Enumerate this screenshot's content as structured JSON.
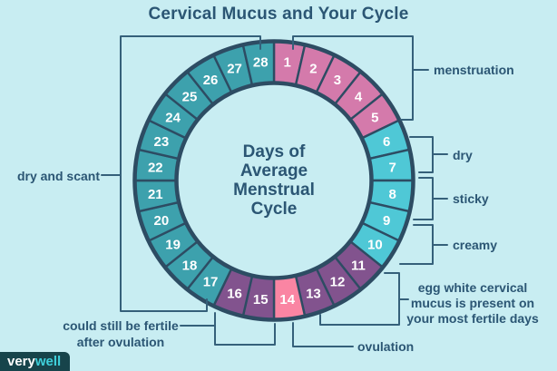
{
  "title": "Cervical Mucus and Your Cycle",
  "center_label": {
    "lines": [
      "Days of",
      "Average",
      "Menstrual",
      "Cycle"
    ]
  },
  "wheel": {
    "day_count": 28,
    "first_day_label": "1",
    "last_day_label": "28",
    "phases": [
      {
        "name": "menstruation",
        "day_start": 1,
        "day_end": 5,
        "color": "#d47aab"
      },
      {
        "name": "dry-sticky-creamy",
        "day_start": 6,
        "day_end": 10,
        "color": "#4fc8d6"
      },
      {
        "name": "fertile-egg-white",
        "day_start": 11,
        "day_end": 13,
        "color": "#82538e"
      },
      {
        "name": "ovulation",
        "day_start": 14,
        "day_end": 14,
        "color": "#fa85a3"
      },
      {
        "name": "fertile-after-ovulation",
        "day_start": 15,
        "day_end": 16,
        "color": "#82538e"
      },
      {
        "name": "luteal-dry-and-scant",
        "day_start": 17,
        "day_end": 28,
        "color": "#3da1ad"
      }
    ]
  },
  "labels": {
    "menstruation": {
      "text": "menstruation",
      "days": "1-5"
    },
    "dry": {
      "text": "dry",
      "days": "6-7"
    },
    "sticky": {
      "text": "sticky",
      "days": "8"
    },
    "creamy": {
      "text": "creamy",
      "days": "9-10"
    },
    "egg_white": {
      "lines": [
        "egg white cervical",
        "mucus is present on",
        "your most fertile days"
      ],
      "days": "11-13"
    },
    "ovulation": {
      "text": "ovulation",
      "days": "14"
    },
    "could_still": {
      "lines": [
        "could still be fertile",
        "after ovulation"
      ],
      "days": "15-16"
    },
    "dry_and_scant": {
      "text": "dry and scant",
      "days": "17-28"
    }
  },
  "logo": {
    "part1": "very",
    "part2": "well"
  },
  "colors": {
    "background": "#c8edf2",
    "text": "#2b5674",
    "line": "#35607a",
    "ring_outline": "#2d4c63",
    "number_text": "#ffffff",
    "logo_background": "#17444b",
    "logo_part1": "#ffffff",
    "logo_part2": "#3fd0db"
  }
}
